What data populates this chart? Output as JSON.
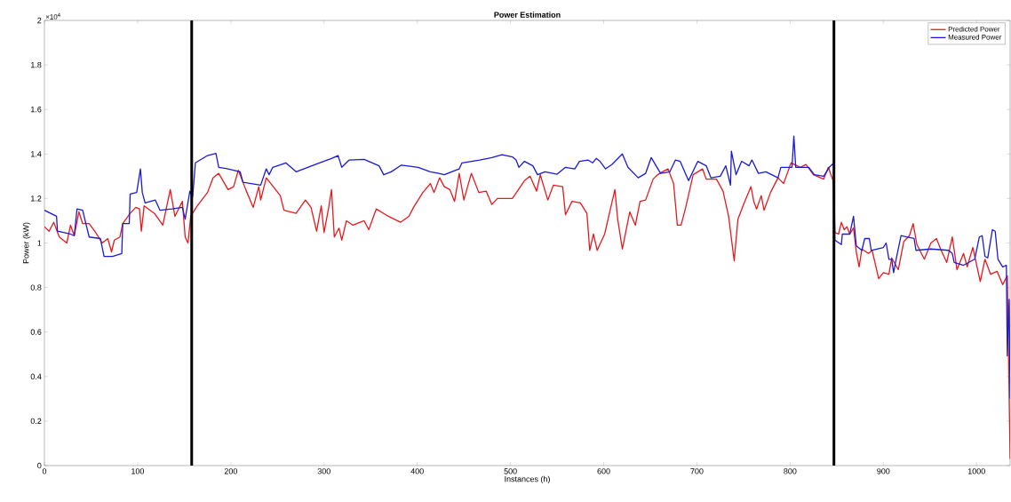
{
  "chart_data": {
    "type": "line",
    "title": "Power Estimation",
    "xlabel": "Instances (h)",
    "ylabel": "Power (kW)",
    "annotations": [
      "×10$^{4}$"
    ],
    "xlim": [
      0,
      1036
    ],
    "ylim": [
      0,
      2
    ],
    "xticks": [
      0,
      100,
      200,
      300,
      400,
      500,
      600,
      700,
      800,
      900,
      1000
    ],
    "yticks": [
      0,
      0.2,
      0.4,
      0.6,
      0.8,
      1,
      1.2,
      1.4,
      1.6,
      1.8,
      2
    ],
    "grid": false,
    "legend": "top right",
    "ref_lines": [
      {
        "axis": "x",
        "value": 158,
        "color": "#000000"
      },
      {
        "axis": "x",
        "value": 847,
        "color": "#000000"
      }
    ],
    "series": [
      {
        "name": "Predicted Power",
        "color": "#e8191e",
        "x": [
          0,
          5,
          10,
          16,
          24,
          28,
          32,
          37,
          41,
          48,
          54,
          62,
          68,
          72,
          75,
          81,
          84,
          92,
          98,
          102,
          104,
          107,
          118,
          127,
          135,
          140,
          148,
          151,
          154,
          157,
          164,
          175,
          181,
          187,
          197,
          203,
          208,
          216,
          224,
          230,
          232,
          238,
          253,
          257,
          270,
          280,
          286,
          292,
          297,
          300,
          305,
          308,
          311,
          316,
          319,
          324,
          331,
          343,
          348,
          356,
          369,
          382,
          391,
          396,
          406,
          414,
          418,
          424,
          429,
          435,
          440,
          445,
          450,
          458,
          466,
          474,
          480,
          486,
          502,
          515,
          521,
          528,
          532,
          540,
          546,
          556,
          559,
          566,
          575,
          582,
          585,
          589,
          593,
          601,
          612,
          615,
          620,
          628,
          634,
          639,
          645,
          653,
          658,
          663,
          669,
          675,
          679,
          683,
          688,
          696,
          706,
          710,
          721,
          728,
          734,
          740,
          744,
          750,
          758,
          761,
          764,
          769,
          772,
          779,
          787,
          793,
          801,
          811,
          817,
          825,
          836,
          841,
          846,
          848,
          852,
          855,
          858,
          861,
          864,
          868,
          871,
          874,
          877,
          884,
          888,
          895,
          900,
          906,
          909,
          916,
          922,
          928,
          932,
          936,
          944,
          951,
          957,
          962,
          968,
          974,
          979,
          986,
          990,
          996,
          1004,
          1009,
          1015,
          1022,
          1028,
          1033,
          1036
        ],
        "values": [
          1.073,
          1.053,
          1.093,
          1.027,
          1.0,
          1.08,
          1.033,
          1.14,
          1.087,
          1.087,
          1.053,
          1.0,
          1.02,
          0.96,
          1.013,
          1.027,
          1.087,
          1.133,
          1.16,
          1.153,
          1.053,
          1.167,
          1.133,
          1.08,
          1.24,
          1.12,
          1.187,
          1.027,
          1.0,
          1.12,
          1.167,
          1.227,
          1.293,
          1.313,
          1.24,
          1.253,
          1.327,
          1.24,
          1.16,
          1.253,
          1.193,
          1.293,
          1.213,
          1.147,
          1.133,
          1.193,
          1.16,
          1.053,
          1.167,
          1.047,
          1.16,
          1.24,
          1.027,
          1.067,
          1.013,
          1.1,
          1.08,
          1.1,
          1.06,
          1.153,
          1.12,
          1.093,
          1.12,
          1.16,
          1.227,
          1.267,
          1.227,
          1.293,
          1.253,
          1.24,
          1.187,
          1.313,
          1.193,
          1.313,
          1.227,
          1.233,
          1.173,
          1.2,
          1.2,
          1.28,
          1.3,
          1.233,
          1.307,
          1.193,
          1.26,
          1.253,
          1.127,
          1.187,
          1.18,
          1.133,
          0.967,
          1.04,
          0.967,
          1.04,
          1.24,
          1.107,
          0.973,
          1.14,
          1.08,
          1.187,
          1.193,
          1.287,
          1.307,
          1.32,
          1.333,
          1.267,
          1.08,
          1.08,
          1.16,
          1.307,
          1.333,
          1.287,
          1.287,
          1.233,
          1.12,
          0.92,
          1.107,
          1.173,
          1.253,
          1.187,
          1.153,
          1.213,
          1.147,
          1.227,
          1.293,
          1.267,
          1.36,
          1.34,
          1.353,
          1.307,
          1.287,
          1.34,
          1.28,
          1.047,
          1.04,
          1.093,
          1.06,
          1.073,
          1.04,
          1.067,
          0.96,
          0.893,
          0.973,
          0.953,
          0.967,
          0.84,
          0.867,
          0.86,
          0.933,
          0.88,
          1.007,
          1.033,
          1.087,
          0.993,
          0.927,
          1.0,
          1.02,
          0.967,
          0.913,
          1.027,
          0.88,
          0.953,
          0.893,
          0.98,
          0.827,
          0.927,
          0.86,
          0.873,
          0.813,
          0.853,
          0.03
        ]
      },
      {
        "name": "Measured Power",
        "color": "#1a1ad6",
        "x": [
          0,
          13,
          14,
          28,
          32,
          35,
          41,
          48,
          60,
          64,
          73,
          83,
          84,
          91,
          92,
          99,
          103,
          105,
          108,
          119,
          124,
          137,
          148,
          151,
          156,
          159,
          162,
          175,
          184,
          187,
          197,
          210,
          213,
          232,
          238,
          241,
          245,
          259,
          270,
          295,
          308,
          315,
          319,
          327,
          343,
          359,
          364,
          372,
          383,
          401,
          414,
          423,
          429,
          445,
          448,
          467,
          480,
          491,
          502,
          506,
          509,
          515,
          524,
          529,
          537,
          550,
          559,
          569,
          574,
          583,
          588,
          592,
          596,
          602,
          609,
          620,
          626,
          637,
          645,
          651,
          661,
          671,
          677,
          682,
          691,
          701,
          710,
          715,
          725,
          731,
          736,
          737,
          742,
          748,
          756,
          759,
          766,
          774,
          787,
          790,
          802,
          804,
          806,
          820,
          826,
          836,
          842,
          847,
          848,
          855,
          856,
          864,
          868,
          871,
          877,
          880,
          885,
          887,
          900,
          903,
          906,
          909,
          911,
          914,
          919,
          925,
          933,
          935,
          951,
          970,
          974,
          976,
          986,
          998,
          1003,
          1006,
          1009,
          1012,
          1017,
          1020,
          1023,
          1028,
          1032,
          1033,
          1035,
          1036
        ],
        "values": [
          1.147,
          1.12,
          1.053,
          1.04,
          1.033,
          1.153,
          1.147,
          1.027,
          1.02,
          0.94,
          0.94,
          0.953,
          1.087,
          1.087,
          1.22,
          1.227,
          1.333,
          1.227,
          1.18,
          1.193,
          1.147,
          1.153,
          1.16,
          1.107,
          1.233,
          1.207,
          1.36,
          1.393,
          1.403,
          1.34,
          1.333,
          1.32,
          1.273,
          1.26,
          1.333,
          1.307,
          1.34,
          1.36,
          1.32,
          1.36,
          1.38,
          1.393,
          1.34,
          1.373,
          1.376,
          1.347,
          1.307,
          1.32,
          1.35,
          1.34,
          1.32,
          1.313,
          1.307,
          1.333,
          1.36,
          1.373,
          1.384,
          1.397,
          1.387,
          1.373,
          1.34,
          1.367,
          1.347,
          1.307,
          1.32,
          1.309,
          1.34,
          1.333,
          1.367,
          1.373,
          1.36,
          1.38,
          1.367,
          1.333,
          1.353,
          1.4,
          1.34,
          1.293,
          1.313,
          1.384,
          1.313,
          1.32,
          1.373,
          1.367,
          1.28,
          1.367,
          1.347,
          1.293,
          1.3,
          1.347,
          1.26,
          1.413,
          1.307,
          1.367,
          1.347,
          1.373,
          1.313,
          1.32,
          1.293,
          1.34,
          1.34,
          1.48,
          1.34,
          1.34,
          1.307,
          1.3,
          1.34,
          1.36,
          1.013,
          0.993,
          1.04,
          1.04,
          1.12,
          0.987,
          0.967,
          1.02,
          1.02,
          0.967,
          0.98,
          1.0,
          0.927,
          0.927,
          0.867,
          0.933,
          1.033,
          1.027,
          1.02,
          0.967,
          0.973,
          0.967,
          0.953,
          0.913,
          0.9,
          0.927,
          1.027,
          1.033,
          0.94,
          0.933,
          1.06,
          1.053,
          0.927,
          0.893,
          0.9,
          0.493,
          0.747,
          0.3
        ]
      }
    ]
  }
}
